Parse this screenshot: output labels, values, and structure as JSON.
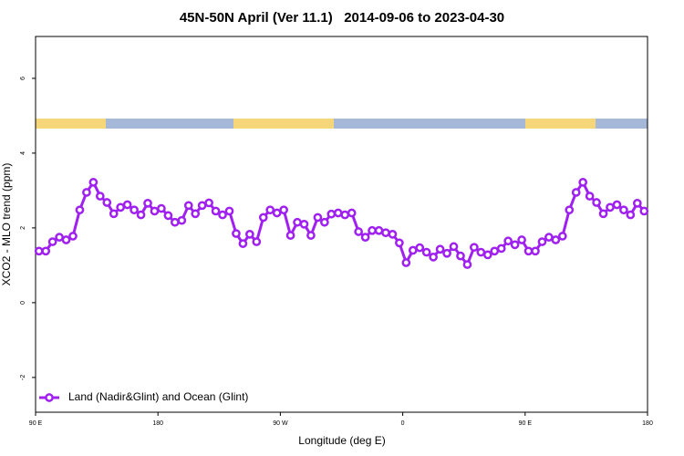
{
  "chart_data": {
    "type": "line",
    "title": "45N-50N April (Ver 11.1)   2014-09-06 to 2023-04-30",
    "xlabel": "Longitude (deg E)",
    "ylabel": "XCO2 - MLO trend (ppm)",
    "xlim": [
      90,
      540
    ],
    "xticks": [
      {
        "value": 90,
        "label": "90 E"
      },
      {
        "value": 180,
        "label": "180"
      },
      {
        "value": 270,
        "label": "90 W"
      },
      {
        "value": 360,
        "label": "0"
      },
      {
        "value": 450,
        "label": "90 E"
      },
      {
        "value": 540,
        "label": "180"
      }
    ],
    "ylim": [
      -2.93,
      7.12
    ],
    "yticks": [
      -2,
      0,
      2,
      4,
      6
    ],
    "legend": "bottom-left",
    "x": [
      92.5,
      97.5,
      102.5,
      107.5,
      112.5,
      117.5,
      122.5,
      127.5,
      132.5,
      137.5,
      142.5,
      147.5,
      152.5,
      157.5,
      162.5,
      167.5,
      172.5,
      177.5,
      182.5,
      187.5,
      192.5,
      197.5,
      202.5,
      207.5,
      212.5,
      217.5,
      222.5,
      227.5,
      232.5,
      237.5,
      242.5,
      247.5,
      252.5,
      257.5,
      262.5,
      267.5,
      272.5,
      277.5,
      282.5,
      287.5,
      292.5,
      297.5,
      302.5,
      307.5,
      312.5,
      317.5,
      322.5,
      327.5,
      332.5,
      337.5,
      342.5,
      347.5,
      352.5,
      357.5,
      362.5,
      367.5,
      372.5,
      377.5,
      382.5,
      387.5,
      392.5,
      397.5,
      402.5,
      407.5,
      412.5,
      417.5,
      422.5,
      427.5,
      432.5,
      437.5,
      442.5,
      447.5,
      452.5,
      457.5,
      462.5,
      467.5,
      472.5,
      477.5,
      482.5,
      487.5,
      492.5,
      497.5,
      502.5,
      507.5,
      512.5,
      517.5,
      522.5,
      527.5,
      532.5,
      537.5
    ],
    "series": [
      {
        "name": "Land (Nadir&Glint) and Ocean (Glint)",
        "color": "#a020f0",
        "values": [
          1.38,
          1.38,
          1.63,
          1.75,
          1.68,
          1.78,
          2.48,
          2.95,
          3.22,
          2.85,
          2.68,
          2.38,
          2.55,
          2.62,
          2.48,
          2.35,
          2.66,
          2.45,
          2.52,
          2.33,
          2.15,
          2.2,
          2.6,
          2.38,
          2.6,
          2.67,
          2.45,
          2.35,
          2.45,
          1.85,
          1.58,
          1.83,
          1.63,
          2.28,
          2.48,
          2.4,
          2.48,
          1.8,
          2.15,
          2.1,
          1.8,
          2.28,
          2.15,
          2.37,
          2.4,
          2.35,
          2.4,
          1.9,
          1.75,
          1.93,
          1.93,
          1.87,
          1.83,
          1.6,
          1.07,
          1.4,
          1.47,
          1.35,
          1.22,
          1.43,
          1.32,
          1.5,
          1.25,
          1.02,
          1.48,
          1.35,
          1.28,
          1.38,
          1.45,
          1.65,
          1.55,
          1.68,
          1.38,
          1.38,
          1.63,
          1.75,
          1.68,
          1.78,
          2.48,
          2.95,
          3.22,
          2.85,
          2.68,
          2.38,
          2.55,
          2.62,
          2.48,
          2.35,
          2.66,
          2.45
        ]
      }
    ]
  }
}
